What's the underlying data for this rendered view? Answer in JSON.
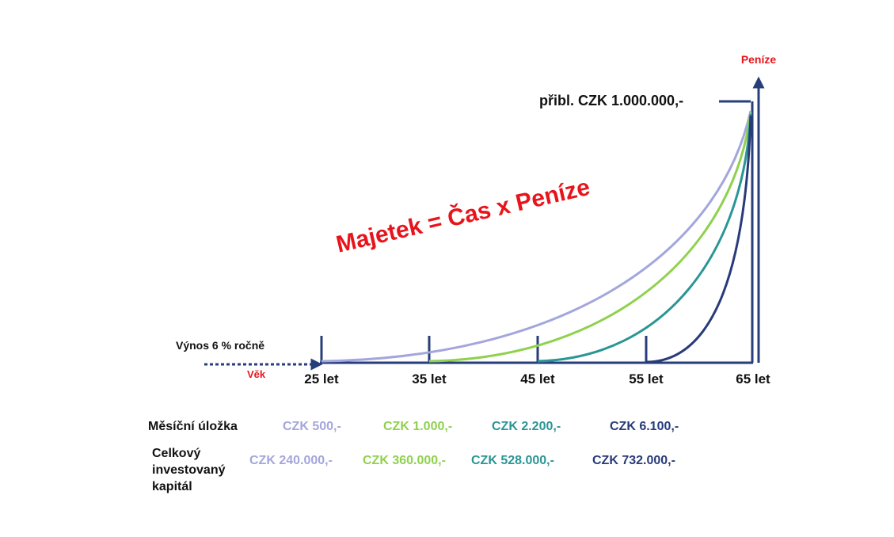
{
  "header": {
    "title": "Majetek = Čas x Peníze"
  },
  "axes": {
    "y_label": "Peníze",
    "x_label": "Věk",
    "target": "přibl. CZK 1.000.000,-",
    "yield_note": "Výnos 6 % ročně"
  },
  "ages": [
    "25 let",
    "35 let",
    "45 let",
    "55 let",
    "65 let"
  ],
  "row_labels": {
    "monthly": "Měsíční úložka",
    "total": [
      "Celkový",
      "investovaný",
      "kapitál"
    ]
  },
  "plans": [
    {
      "color": "#a3a6dc",
      "monthly": "CZK 500,-",
      "total": "CZK 240.000,-"
    },
    {
      "color": "#8fd14f",
      "monthly": "CZK 1.000,-",
      "total": "CZK 360.000,-"
    },
    {
      "color": "#2a9595",
      "monthly": "CZK 2.200,-",
      "total": "CZK 528.000,-"
    },
    {
      "color": "#283a7a",
      "monthly": "CZK 6.100,-",
      "total": "CZK 732.000,-"
    }
  ]
}
